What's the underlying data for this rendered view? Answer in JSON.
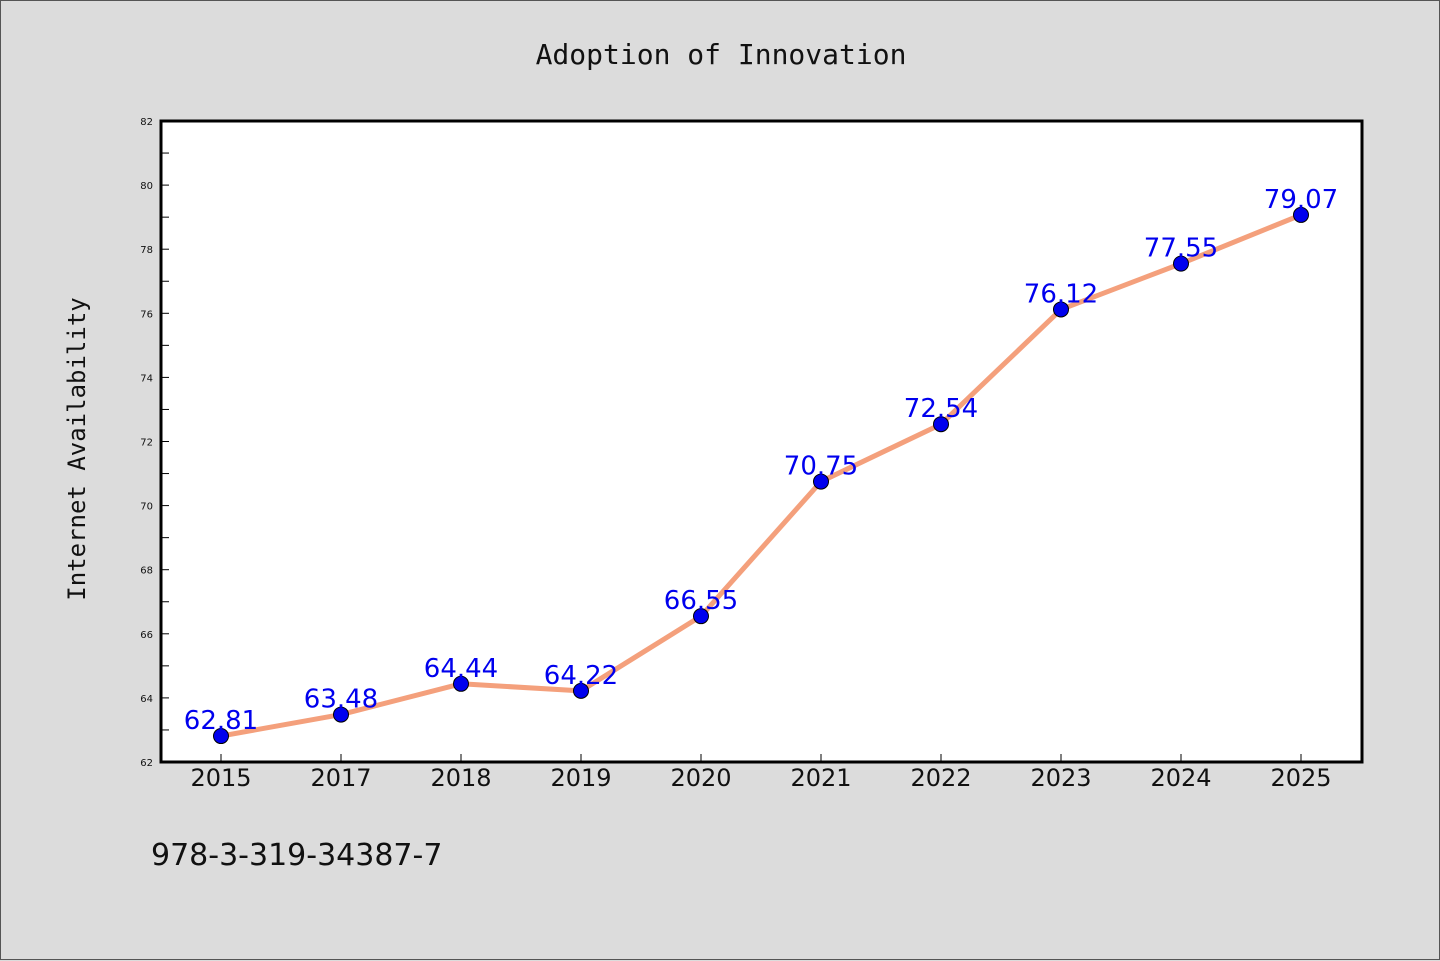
{
  "chart_data": {
    "type": "line",
    "title": "Adoption of Innovation",
    "xlabel": "",
    "ylabel": "Internet Availability",
    "categories": [
      "2015",
      "2017",
      "2018",
      "2019",
      "2020",
      "2021",
      "2022",
      "2023",
      "2024",
      "2025"
    ],
    "series": [
      {
        "values": [
          62.81,
          63.48,
          64.44,
          64.22,
          66.55,
          70.75,
          72.54,
          76.12,
          77.55,
          79.07
        ],
        "labels": [
          "62.81",
          "63.48",
          "64.44",
          "64.22",
          "66.55",
          "70.75",
          "72.54",
          "76.12",
          "77.55",
          "79.07"
        ]
      }
    ],
    "ylim": [
      62,
      82
    ],
    "yticks": [
      "62",
      "64",
      "66",
      "68",
      "70",
      "72",
      "74",
      "76",
      "78",
      "80",
      "82"
    ],
    "grid": false,
    "legend": "none",
    "colors": {
      "line": "#f4a07c",
      "marker": "#0000ee",
      "label": "#0000ee",
      "plot_background": "#ffffff",
      "figure_background": "#dcdcdc"
    }
  },
  "footer": {
    "text": "978-3-319-34387-7"
  }
}
